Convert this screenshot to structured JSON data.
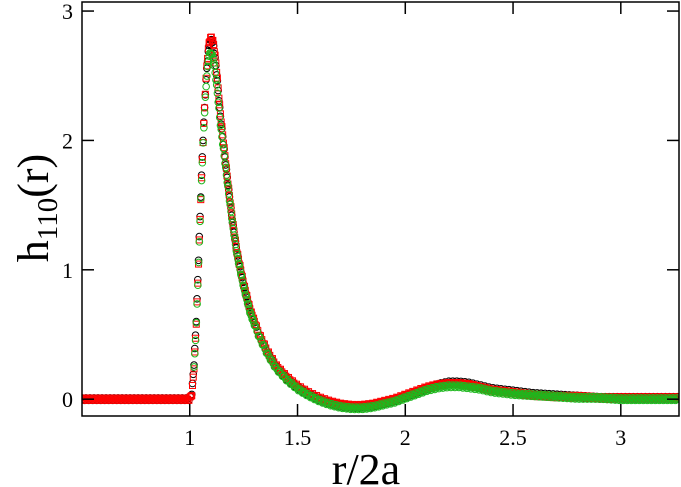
{
  "chart_data": {
    "type": "scatter",
    "xlabel": "r/2a",
    "ylabel": {
      "main": "h",
      "subscript": "110",
      "suffix": "(r)"
    },
    "xlim": [
      0.5,
      3.27
    ],
    "ylim": [
      -0.13,
      3.07
    ],
    "x_ticks": [
      1,
      1.5,
      2,
      2.5,
      3
    ],
    "x_tick_labels": [
      "1",
      "1.5",
      "2",
      "2.5",
      "3"
    ],
    "y_ticks": [
      0,
      1,
      2,
      3
    ],
    "y_tick_labels": [
      "0",
      "1",
      "2",
      "3"
    ],
    "grid": false,
    "legend": "none",
    "series": [
      {
        "marker": "circle",
        "color": "#000000",
        "x": [
          0.5,
          1.0,
          1.01,
          1.02,
          1.03,
          1.04,
          1.05,
          1.06,
          1.07,
          1.08,
          1.09,
          1.1,
          1.11,
          1.12,
          1.13,
          1.14,
          1.16,
          1.18,
          1.2,
          1.22,
          1.25,
          1.28,
          1.32,
          1.36,
          1.4,
          1.45,
          1.5,
          1.55,
          1.6,
          1.65,
          1.7,
          1.75,
          1.8,
          1.85,
          1.9,
          1.95,
          2.0,
          2.05,
          2.1,
          2.15,
          2.2,
          2.25,
          2.3,
          2.35,
          2.4,
          2.5,
          2.6,
          2.7,
          2.8,
          2.9,
          3.0,
          3.1,
          3.2,
          3.27
        ],
        "y": [
          0.0,
          0.0,
          0.05,
          0.28,
          0.6,
          1.05,
          1.52,
          1.95,
          2.3,
          2.58,
          2.74,
          2.78,
          2.74,
          2.6,
          2.42,
          2.22,
          1.92,
          1.62,
          1.35,
          1.12,
          0.88,
          0.68,
          0.5,
          0.36,
          0.25,
          0.16,
          0.09,
          0.04,
          0.0,
          -0.03,
          -0.05,
          -0.06,
          -0.06,
          -0.05,
          -0.03,
          -0.01,
          0.02,
          0.05,
          0.08,
          0.11,
          0.13,
          0.13,
          0.12,
          0.1,
          0.08,
          0.06,
          0.04,
          0.03,
          0.02,
          0.01,
          0.01,
          0.01,
          0.01,
          0.01
        ]
      },
      {
        "marker": "square",
        "color": "#ff0000",
        "x": [
          0.5,
          1.0,
          1.01,
          1.02,
          1.03,
          1.04,
          1.05,
          1.06,
          1.07,
          1.08,
          1.09,
          1.1,
          1.11,
          1.12,
          1.13,
          1.14,
          1.16,
          1.18,
          1.2,
          1.22,
          1.25,
          1.28,
          1.32,
          1.36,
          1.4,
          1.45,
          1.5,
          1.55,
          1.6,
          1.65,
          1.7,
          1.75,
          1.8,
          1.85,
          1.9,
          1.95,
          2.0,
          2.05,
          2.1,
          2.15,
          2.2,
          2.25,
          2.3,
          2.35,
          2.4,
          2.5,
          2.6,
          2.7,
          2.8,
          2.9,
          3.0,
          3.1,
          3.2,
          3.27
        ],
        "y": [
          0.0,
          0.0,
          0.04,
          0.25,
          0.58,
          1.02,
          1.5,
          1.93,
          2.3,
          2.6,
          2.76,
          2.8,
          2.75,
          2.62,
          2.44,
          2.24,
          1.93,
          1.63,
          1.36,
          1.13,
          0.89,
          0.69,
          0.51,
          0.37,
          0.26,
          0.17,
          0.1,
          0.05,
          0.01,
          -0.02,
          -0.04,
          -0.05,
          -0.05,
          -0.04,
          -0.02,
          0.0,
          0.03,
          0.06,
          0.09,
          0.11,
          0.12,
          0.12,
          0.11,
          0.09,
          0.07,
          0.05,
          0.03,
          0.02,
          0.02,
          0.01,
          0.01,
          0.01,
          0.01,
          0.01
        ]
      },
      {
        "marker": "circle",
        "color": "#1db81d",
        "x": [
          1.02,
          1.03,
          1.04,
          1.05,
          1.06,
          1.07,
          1.08,
          1.09,
          1.1,
          1.11,
          1.12,
          1.13,
          1.14,
          1.16,
          1.18,
          1.2,
          1.22,
          1.25,
          1.28,
          1.32,
          1.36,
          1.4,
          1.45,
          1.5,
          1.55,
          1.6,
          1.65,
          1.7,
          1.75,
          1.8,
          1.85,
          1.9,
          1.95,
          2.0,
          2.05,
          2.1,
          2.15,
          2.2,
          2.25,
          2.3,
          2.35,
          2.4,
          2.5,
          2.6,
          2.7,
          2.8,
          2.9,
          3.0,
          3.1,
          3.2,
          3.27
        ],
        "y": [
          0.24,
          0.56,
          1.0,
          1.48,
          1.9,
          2.26,
          2.52,
          2.66,
          2.68,
          2.62,
          2.5,
          2.34,
          2.16,
          1.88,
          1.6,
          1.34,
          1.11,
          0.87,
          0.67,
          0.49,
          0.35,
          0.24,
          0.15,
          0.08,
          0.03,
          -0.01,
          -0.04,
          -0.06,
          -0.07,
          -0.07,
          -0.06,
          -0.04,
          -0.02,
          0.01,
          0.04,
          0.07,
          0.09,
          0.1,
          0.1,
          0.09,
          0.08,
          0.06,
          0.04,
          0.03,
          0.02,
          0.01,
          0.01,
          0.0,
          0.0,
          0.0,
          0.0
        ]
      }
    ]
  }
}
